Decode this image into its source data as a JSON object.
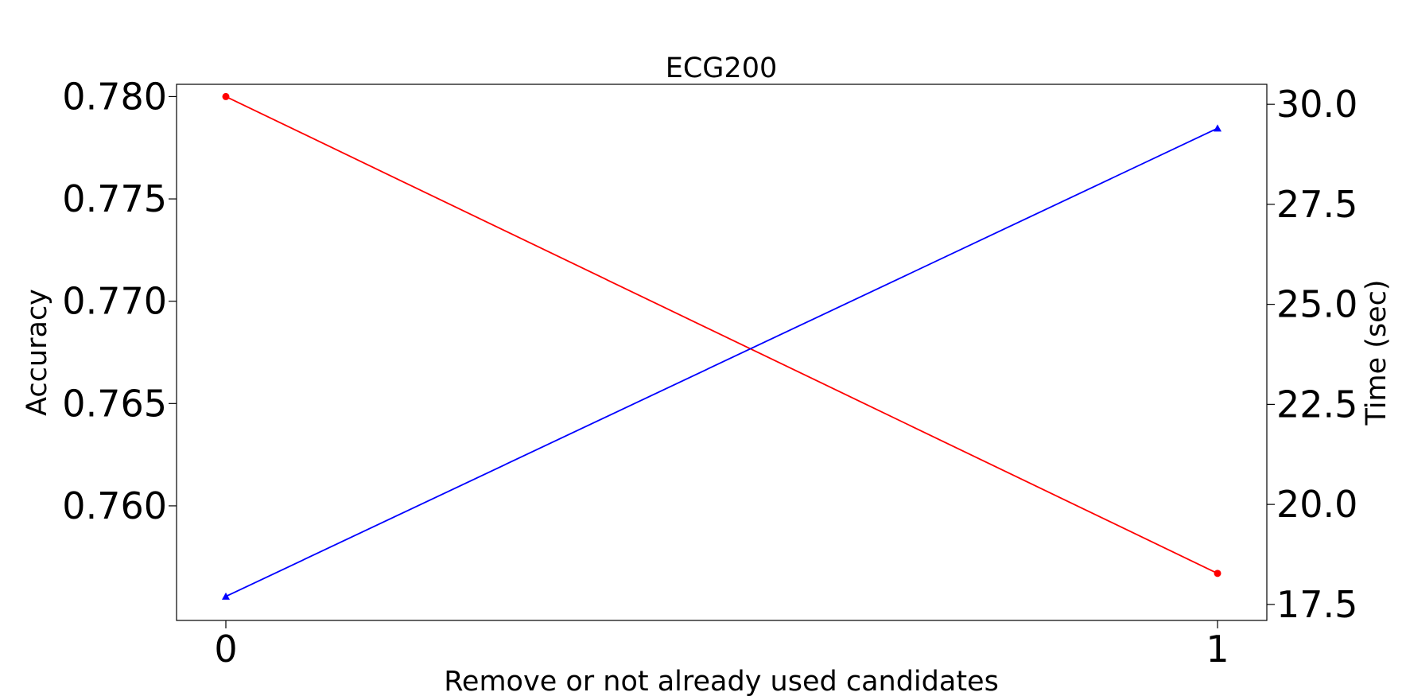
{
  "chart_data": {
    "type": "line",
    "title": "ECG200",
    "xlabel": "Remove or not already used candidates",
    "ylabel_left": "Accuracy",
    "ylabel_right": "Time (sec)",
    "x": [
      0,
      1
    ],
    "x_ticks": [
      "0",
      "1"
    ],
    "y_left_ticks": [
      "0.760",
      "0.765",
      "0.770",
      "0.775",
      "0.780"
    ],
    "y_left_tick_values": [
      0.76,
      0.765,
      0.77,
      0.775,
      0.78
    ],
    "y_right_ticks": [
      "17.5",
      "20.0",
      "22.5",
      "25.0",
      "27.5",
      "30.0"
    ],
    "y_right_tick_values": [
      17.5,
      20.0,
      22.5,
      25.0,
      27.5,
      30.0
    ],
    "ylim_left": [
      0.7544,
      0.7806
    ],
    "ylim_right": [
      17.1,
      30.5
    ],
    "grid": false,
    "series": [
      {
        "axis": "left",
        "color": "#ff0000",
        "marker": "circle",
        "values": [
          0.78,
          0.7567
        ]
      },
      {
        "axis": "right",
        "color": "#0000ff",
        "marker": "triangle",
        "values": [
          17.7,
          29.4
        ]
      }
    ]
  }
}
